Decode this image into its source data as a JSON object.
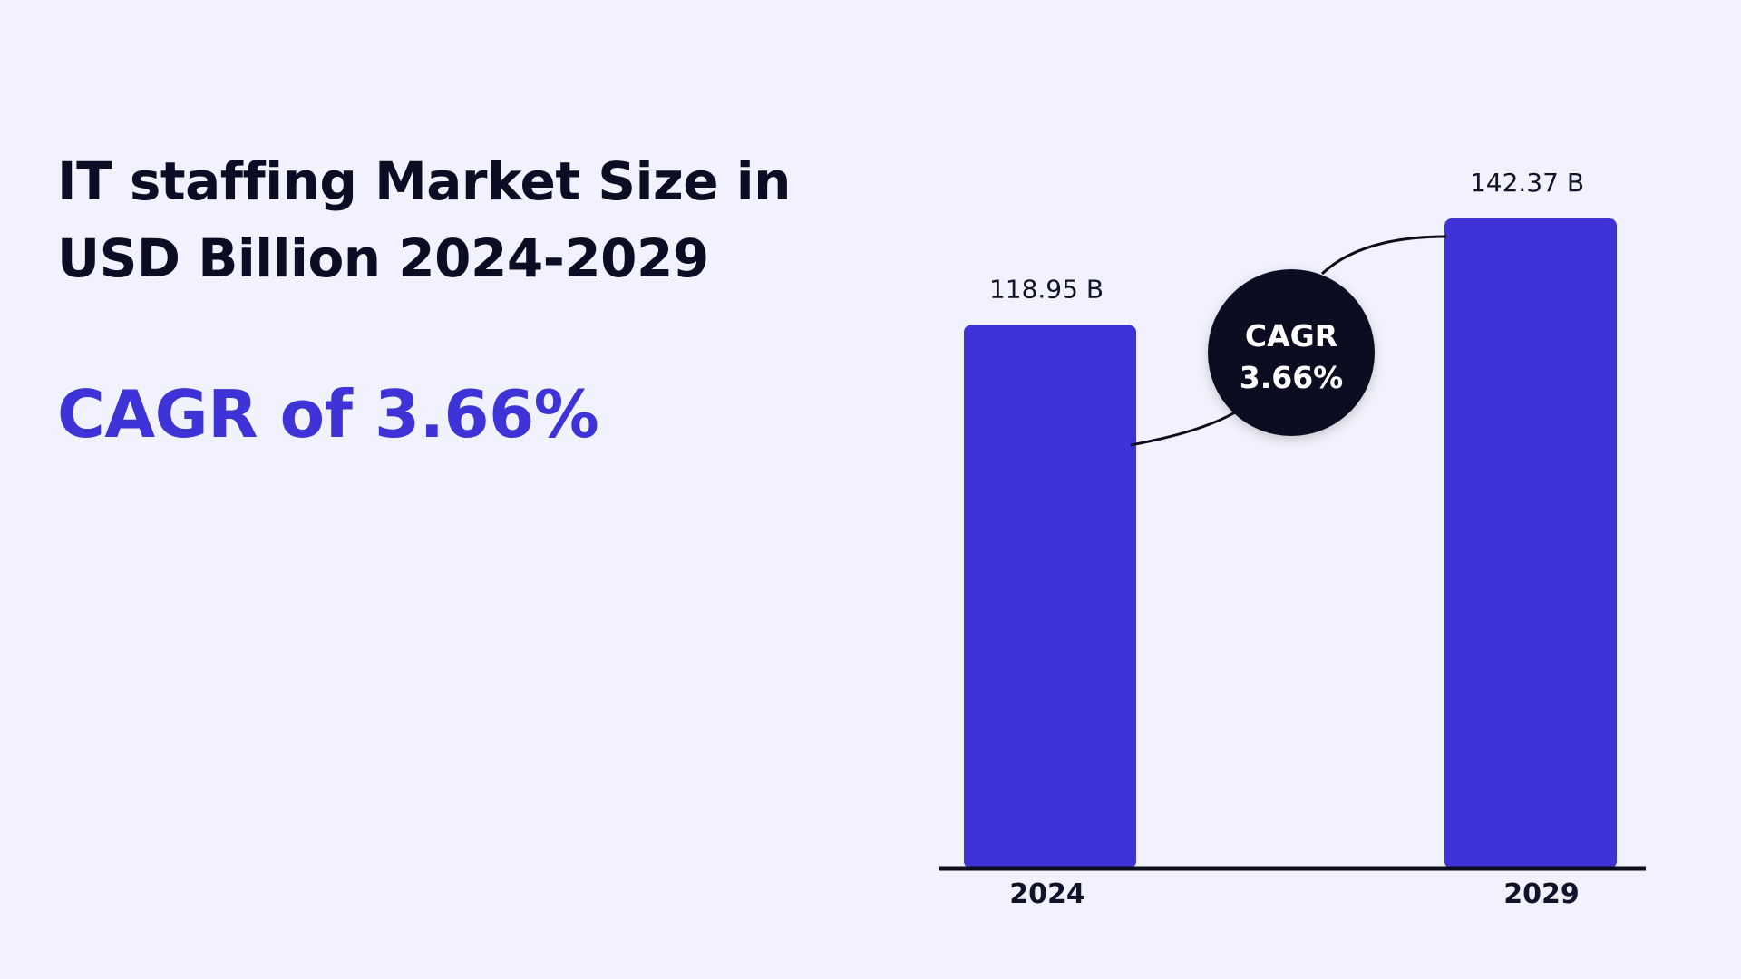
{
  "header": {
    "title_line1": "IT staffing Market Size in",
    "title_line2": "USD Billion 2024-2029",
    "subtitle": "CAGR of 3.66%"
  },
  "colors": {
    "background": "#f1f2fd",
    "bar": "#3d33d6",
    "title": "#0c0c24",
    "accent": "#3d33d6",
    "badge": "#0b0c24"
  },
  "chart_data": {
    "type": "bar",
    "title": "IT staffing Market Size in USD Billion 2024-2029",
    "categories": [
      "2024",
      "2029"
    ],
    "values": [
      118.95,
      142.37
    ],
    "value_labels": [
      "118.95 B",
      "142.37 B"
    ],
    "xlabel": "",
    "ylabel": "",
    "grid": false,
    "legend": "none",
    "annotation": {
      "line1": "CAGR",
      "line2": "3.66%"
    }
  }
}
